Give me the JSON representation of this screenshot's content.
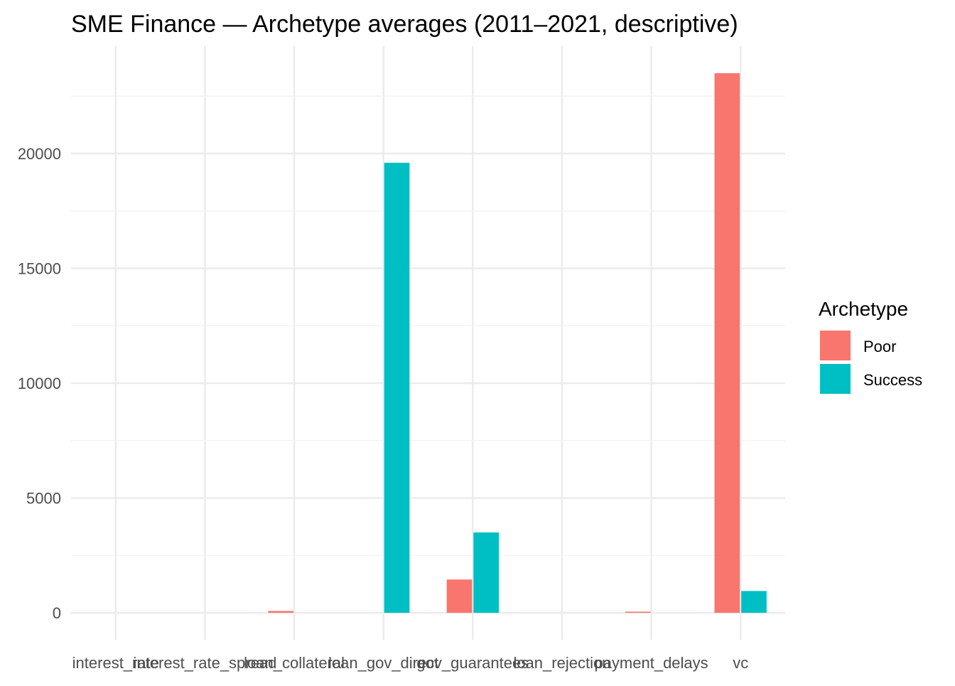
{
  "chart_data": {
    "type": "bar",
    "title": "SME Finance — Archetype averages (2011–2021, descriptive)",
    "xlabel": "",
    "ylabel": "",
    "categories": [
      "interest_rate",
      "interest_rate_spread",
      "loan_collateral",
      "loan_gov_direct",
      "gov_guarantees",
      "loan_rejection",
      "payment_delays",
      "vc"
    ],
    "series": [
      {
        "name": "Poor",
        "color": "#F8766D",
        "values": [
          0,
          0,
          80,
          0,
          1450,
          0,
          50,
          23500
        ]
      },
      {
        "name": "Success",
        "color": "#00BFC4",
        "values": [
          0,
          0,
          0,
          19600,
          3500,
          0,
          0,
          950
        ]
      }
    ],
    "yticks": [
      0,
      5000,
      10000,
      15000,
      20000
    ],
    "ytick_labels": [
      "0",
      "5000",
      "10000",
      "15000",
      "20000"
    ],
    "ylim": [
      -1175,
      24675
    ],
    "grid": true,
    "legend": {
      "title": "Archetype",
      "position": "right"
    }
  }
}
